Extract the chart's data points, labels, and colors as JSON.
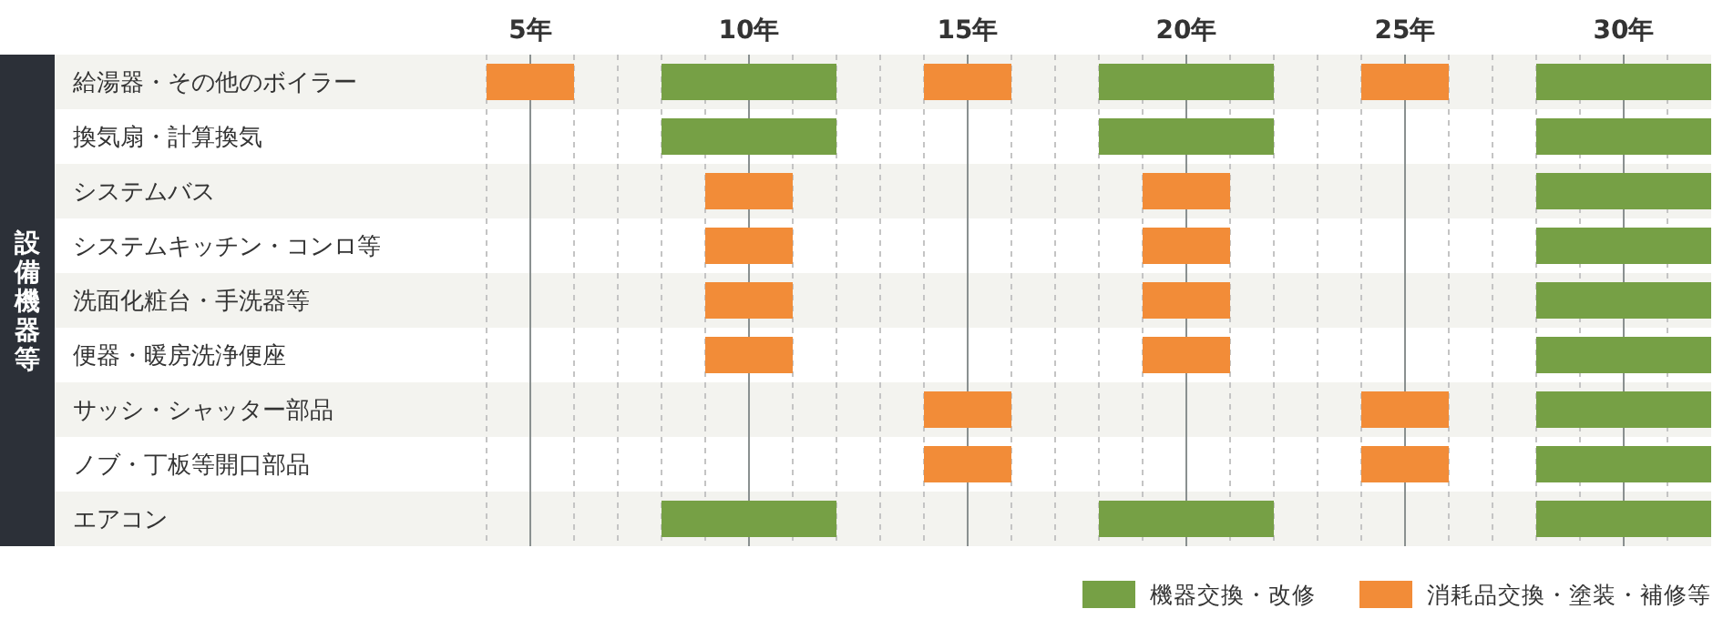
{
  "chart_data": {
    "type": "bar",
    "orientation": "horizontal",
    "ylabel": "設備機器等",
    "categories": [
      "給湯器・その他のボイラー",
      "換気扇・計算換気",
      "システムバス",
      "システムキッチン・コンロ等",
      "洗面化粧台・手洗器等",
      "便器・暖房洗浄便座",
      "サッシ・シャッター部品",
      "ノブ・丁板等開口部品",
      "エアコン"
    ],
    "series": [
      {
        "name": "機器交換・改修",
        "color": "#76a045",
        "base": [
          8,
          8,
          null,
          null,
          null,
          null,
          null,
          null,
          8
        ],
        "values": [
          4,
          4,
          null,
          null,
          null,
          null,
          null,
          null,
          4
        ]
      },
      {
        "color": "#76a045",
        "base": [
          18,
          18,
          null,
          null,
          null,
          null,
          null,
          null,
          18
        ],
        "values": [
          4,
          4,
          null,
          null,
          null,
          null,
          null,
          null,
          4
        ]
      },
      {
        "color": "#76a045",
        "base": [
          28,
          28,
          28,
          28,
          28,
          28,
          28,
          28,
          28
        ],
        "values": [
          4,
          4,
          4,
          4,
          4,
          4,
          4,
          4,
          4
        ]
      },
      {
        "name": "消耗品交換・塗装・補修等",
        "color": "#f28c38",
        "base": [
          4,
          null,
          null,
          null,
          null,
          null,
          null,
          null,
          null
        ],
        "values": [
          2,
          null,
          null,
          null,
          null,
          null,
          null,
          null,
          null
        ]
      },
      {
        "color": "#f28c38",
        "base": [
          null,
          null,
          9,
          9,
          9,
          9,
          null,
          null,
          null
        ],
        "values": [
          null,
          null,
          2,
          2,
          2,
          2,
          null,
          null,
          null
        ]
      },
      {
        "color": "#f28c38",
        "base": [
          14,
          null,
          null,
          null,
          null,
          null,
          14,
          14,
          null
        ],
        "values": [
          2,
          null,
          null,
          null,
          null,
          null,
          2,
          2,
          null
        ]
      },
      {
        "color": "#f28c38",
        "base": [
          null,
          null,
          19,
          19,
          19,
          19,
          null,
          null,
          null
        ],
        "values": [
          null,
          null,
          2,
          2,
          2,
          2,
          null,
          null,
          null
        ]
      },
      {
        "color": "#f28c38",
        "base": [
          24,
          null,
          null,
          null,
          null,
          null,
          24,
          24,
          null
        ],
        "values": [
          2,
          null,
          null,
          null,
          null,
          null,
          2,
          2,
          null
        ]
      }
    ],
    "xlim": [
      4,
      32
    ],
    "xticks": [
      {
        "value": 4,
        "label": null
      },
      {
        "value": 5,
        "label": "5年"
      },
      {
        "value": 6,
        "label": null
      },
      {
        "value": 7,
        "label": null
      },
      {
        "value": 8,
        "label": null
      },
      {
        "value": 9,
        "label": null
      },
      {
        "value": 10,
        "label": "10年"
      },
      {
        "value": 11,
        "label": null
      },
      {
        "value": 12,
        "label": null
      },
      {
        "value": 13,
        "label": null
      },
      {
        "value": 14,
        "label": null
      },
      {
        "value": 15,
        "label": "15年"
      },
      {
        "value": 16,
        "label": null
      },
      {
        "value": 17,
        "label": null
      },
      {
        "value": 18,
        "label": null
      },
      {
        "value": 19,
        "label": null
      },
      {
        "value": 20,
        "label": "20年"
      },
      {
        "value": 21,
        "label": null
      },
      {
        "value": 22,
        "label": null
      },
      {
        "value": 23,
        "label": null
      },
      {
        "value": 24,
        "label": null
      },
      {
        "value": 25,
        "label": "25年"
      },
      {
        "value": 26,
        "label": null
      },
      {
        "value": 27,
        "label": null
      },
      {
        "value": 28,
        "label": null
      },
      {
        "value": 29,
        "label": null
      },
      {
        "value": 30,
        "label": "30年"
      },
      {
        "value": 31,
        "label": null
      }
    ],
    "grid": "x",
    "legend": "bottom right"
  }
}
